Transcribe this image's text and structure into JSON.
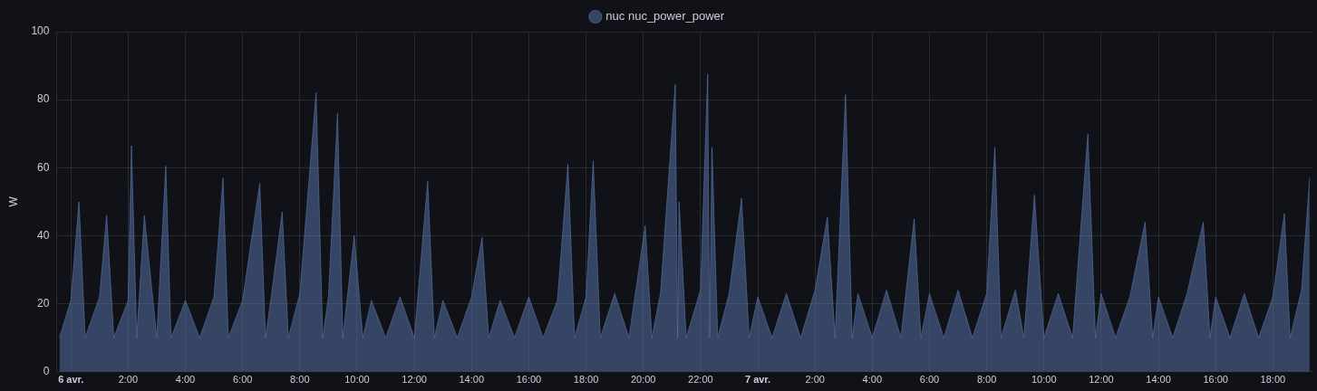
{
  "chart_data": {
    "type": "area",
    "ylabel": "W",
    "legend": "top",
    "grid": true,
    "marker": "none",
    "line_style": "solid",
    "xlim": [
      "--04-05T23:30",
      "--04-07T19:21"
    ],
    "ylim": [
      0,
      100
    ],
    "yticks": [
      0,
      20,
      40,
      60,
      80,
      100
    ],
    "xticks": [
      {
        "value": "--04-06T00:00",
        "label": "6 avr."
      },
      {
        "value": "--04-06T02:00",
        "label": "2:00"
      },
      {
        "value": "--04-06T04:00",
        "label": "4:00"
      },
      {
        "value": "--04-06T06:00",
        "label": "6:00"
      },
      {
        "value": "--04-06T08:00",
        "label": "8:00"
      },
      {
        "value": "--04-06T10:00",
        "label": "10:00"
      },
      {
        "value": "--04-06T12:00",
        "label": "12:00"
      },
      {
        "value": "--04-06T14:00",
        "label": "14:00"
      },
      {
        "value": "--04-06T16:00",
        "label": "16:00"
      },
      {
        "value": "--04-06T18:00",
        "label": "18:00"
      },
      {
        "value": "--04-06T20:00",
        "label": "20:00"
      },
      {
        "value": "--04-06T22:00",
        "label": "22:00"
      },
      {
        "value": "--04-07T00:00",
        "label": "7 avr."
      },
      {
        "value": "--04-07T02:00",
        "label": "2:00"
      },
      {
        "value": "--04-07T04:00",
        "label": "4:00"
      },
      {
        "value": "--04-07T06:00",
        "label": "6:00"
      },
      {
        "value": "--04-07T08:00",
        "label": "8:00"
      },
      {
        "value": "--04-07T10:00",
        "label": "10:00"
      },
      {
        "value": "--04-07T12:00",
        "label": "12:00"
      },
      {
        "value": "--04-07T14:00",
        "label": "14:00"
      },
      {
        "value": "--04-07T16:00",
        "label": "16:00"
      },
      {
        "value": "--04-07T18:00",
        "label": "18:00"
      }
    ],
    "series": [
      {
        "name": "nuc nuc_power_power",
        "color": "#5a78b0",
        "x": [
          "--04-05T23:36",
          "--04-06T00:00",
          "--04-06T00:17",
          "--04-06T00:30",
          "--04-06T01:00",
          "--04-06T01:15",
          "--04-06T01:30",
          "--04-06T02:00",
          "--04-06T02:07",
          "--04-06T02:18",
          "--04-06T02:34",
          "--04-06T03:00",
          "--04-06T03:19",
          "--04-06T03:30",
          "--04-06T04:00",
          "--04-06T04:30",
          "--04-06T05:00",
          "--04-06T05:19",
          "--04-06T05:30",
          "--04-06T06:00",
          "--04-06T06:36",
          "--04-06T06:48",
          "--04-06T07:00",
          "--04-06T07:23",
          "--04-06T07:36",
          "--04-06T08:00",
          "--04-06T08:34",
          "--04-06T08:48",
          "--04-06T09:00",
          "--04-06T09:19",
          "--04-06T09:30",
          "--04-06T09:54",
          "--04-06T10:12",
          "--04-06T10:30",
          "--04-06T11:00",
          "--04-06T11:30",
          "--04-06T12:00",
          "--04-06T12:28",
          "--04-06T12:42",
          "--04-06T13:00",
          "--04-06T13:30",
          "--04-06T14:00",
          "--04-06T14:22",
          "--04-06T14:36",
          "--04-06T15:00",
          "--04-06T15:30",
          "--04-06T16:00",
          "--04-06T16:30",
          "--04-06T17:00",
          "--04-06T17:22",
          "--04-06T17:36",
          "--04-06T18:00",
          "--04-06T18:15",
          "--04-06T18:30",
          "--04-06T19:00",
          "--04-06T19:30",
          "--04-06T20:04",
          "--04-06T20:18",
          "--04-06T20:36",
          "--04-06T21:07",
          "--04-06T21:12",
          "--04-06T21:15",
          "--04-06T21:30",
          "--04-06T22:00",
          "--04-06T22:15",
          "--04-06T22:19",
          "--04-06T22:24",
          "--04-06T22:36",
          "--04-06T23:00",
          "--04-06T23:26",
          "--04-06T23:42",
          "--04-07T00:00",
          "--04-07T00:30",
          "--04-07T01:00",
          "--04-07T01:30",
          "--04-07T02:00",
          "--04-07T02:26",
          "--04-07T02:42",
          "--04-07T03:04",
          "--04-07T03:18",
          "--04-07T03:30",
          "--04-07T04:00",
          "--04-07T04:30",
          "--04-07T05:00",
          "--04-07T05:28",
          "--04-07T05:42",
          "--04-07T06:00",
          "--04-07T06:30",
          "--04-07T07:00",
          "--04-07T07:30",
          "--04-07T08:00",
          "--04-07T08:17",
          "--04-07T08:30",
          "--04-07T09:00",
          "--04-07T09:18",
          "--04-07T09:40",
          "--04-07T10:00",
          "--04-07T10:30",
          "--04-07T11:00",
          "--04-07T11:32",
          "--04-07T11:48",
          "--04-07T12:00",
          "--04-07T12:30",
          "--04-07T13:00",
          "--04-07T13:32",
          "--04-07T13:48",
          "--04-07T14:00",
          "--04-07T14:30",
          "--04-07T15:00",
          "--04-07T15:34",
          "--04-07T15:48",
          "--04-07T16:00",
          "--04-07T16:30",
          "--04-07T17:00",
          "--04-07T17:30",
          "--04-07T18:00",
          "--04-07T18:24",
          "--04-07T18:36",
          "--04-07T19:00",
          "--04-07T19:17"
        ],
        "values": [
          10,
          21,
          50,
          10,
          22,
          46,
          10,
          21,
          66.5,
          10,
          46,
          10,
          60.5,
          10,
          21,
          10,
          22,
          57,
          10,
          21,
          55.5,
          10,
          22,
          47,
          10,
          23,
          82,
          10,
          22,
          76,
          10,
          40,
          10,
          21,
          10,
          22,
          10,
          56,
          10,
          21,
          10,
          22,
          39.5,
          10,
          21,
          10,
          22,
          10,
          21,
          61,
          10,
          22,
          62,
          10,
          23,
          10,
          43,
          10,
          23,
          84.5,
          10,
          50,
          10,
          24,
          87.5,
          10,
          66,
          10,
          23,
          51,
          10,
          22,
          10,
          23,
          10,
          24,
          45.5,
          10,
          81.5,
          10,
          23,
          10,
          24,
          10,
          45,
          10,
          23,
          10,
          24,
          10,
          23,
          66,
          10,
          24,
          10,
          52,
          10,
          23,
          10,
          70,
          10,
          23,
          10,
          22,
          44,
          10,
          22,
          10,
          23,
          44,
          10,
          22,
          10,
          23,
          10,
          22,
          46.5,
          10,
          24,
          57
        ]
      }
    ]
  }
}
